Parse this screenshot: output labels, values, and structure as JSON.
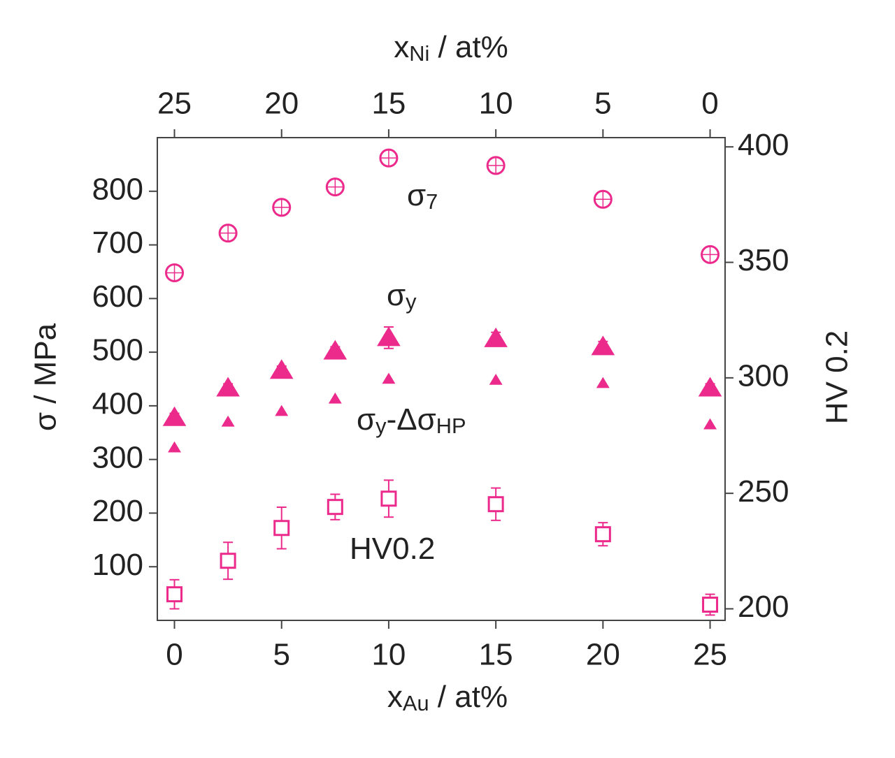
{
  "chart_data": {
    "type": "scatter",
    "x_label": [
      "x",
      "Au",
      " / at%"
    ],
    "x2_label": [
      "x",
      "Ni",
      " / at%"
    ],
    "y_label": "σ / MPa",
    "y2_label": "HV 0.2",
    "xlim": [
      -0.8,
      25.7
    ],
    "xticks": [
      0,
      5,
      10,
      15,
      20,
      25
    ],
    "x2lim": [
      25.8,
      -0.7
    ],
    "x2ticks": [
      25,
      20,
      15,
      10,
      5,
      0
    ],
    "ylim": [
      0,
      900
    ],
    "yticks": [
      100,
      200,
      300,
      400,
      500,
      600,
      700,
      800
    ],
    "y2lim": [
      195,
      404
    ],
    "y2ticks": [
      200,
      250,
      300,
      350,
      400
    ],
    "series": [
      {
        "label": [
          "σ",
          "7"
        ],
        "marker": "circle",
        "color": "#ec2a8c",
        "x": [
          0,
          2.5,
          5,
          7.5,
          10,
          15,
          20,
          25
        ],
        "values": [
          648,
          722,
          770,
          808,
          862,
          848,
          785,
          682
        ]
      },
      {
        "label": [
          "σ",
          "y"
        ],
        "marker": "triangle",
        "color": "#ec2a8c",
        "x": [
          0,
          2.5,
          5,
          7.5,
          10,
          15,
          20,
          25
        ],
        "values": [
          378,
          433,
          466,
          502,
          527,
          525,
          510,
          433
        ],
        "errors": [
          8,
          8,
          8,
          8,
          20,
          12,
          10,
          8
        ]
      },
      {
        "label": [
          "σ",
          "y",
          "-Δσ",
          "HP"
        ],
        "marker": "small-triangle",
        "color": "#ec2a8c",
        "x": [
          0,
          2.5,
          5,
          7.5,
          10,
          15,
          20,
          25
        ],
        "values": [
          322,
          370,
          390,
          413,
          450,
          448,
          442,
          365
        ]
      },
      {
        "label": [
          "HV0.2"
        ],
        "marker": "square",
        "color": "#ec2a8c",
        "axis": "y2",
        "x": [
          0,
          2.5,
          5,
          7.5,
          10,
          15,
          20,
          25
        ],
        "values": [
          206.3,
          220.8,
          235,
          244.1,
          247.7,
          245.3,
          232.3,
          201.8
        ],
        "errors": [
          6.3,
          8,
          9,
          5.5,
          8,
          7,
          5,
          4.5
        ]
      }
    ]
  }
}
